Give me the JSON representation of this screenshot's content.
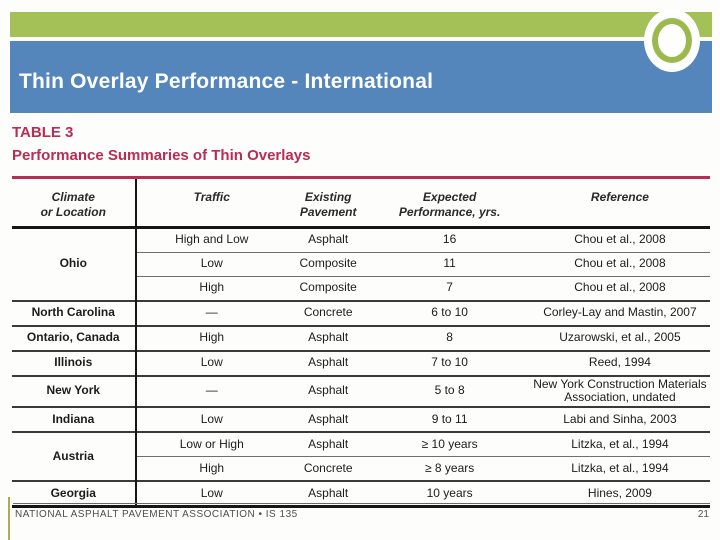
{
  "slide": {
    "title": "Thin Overlay Performance - International"
  },
  "table": {
    "label": "TABLE 3",
    "caption": "Performance Summaries of Thin Overlays",
    "columns": [
      {
        "l1": "Climate",
        "l2": "or Location"
      },
      {
        "l1": "Traffic",
        "l2": ""
      },
      {
        "l1": "Existing",
        "l2": "Pavement"
      },
      {
        "l1": "Expected",
        "l2": "Performance, yrs."
      },
      {
        "l1": "Reference",
        "l2": ""
      }
    ],
    "rows": [
      {
        "location": "Ohio",
        "location_rowspan": 3,
        "group_start": true,
        "traffic": "High and Low",
        "pavement": "Asphalt",
        "performance": "16",
        "reference": "Chou et al., 2008"
      },
      {
        "group_start": false,
        "traffic": "Low",
        "pavement": "Composite",
        "performance": "11",
        "reference": "Chou et al., 2008"
      },
      {
        "group_start": false,
        "traffic": "High",
        "pavement": "Composite",
        "performance": "7",
        "reference": "Chou et al., 2008"
      },
      {
        "location": "North Carolina",
        "location_rowspan": 1,
        "group_start": true,
        "traffic": "—",
        "pavement": "Concrete",
        "performance": "6 to 10",
        "reference": "Corley-Lay and Mastin, 2007"
      },
      {
        "location": "Ontario, Canada",
        "location_rowspan": 1,
        "group_start": true,
        "traffic": "High",
        "pavement": "Asphalt",
        "performance": "8",
        "reference": "Uzarowski, et al., 2005"
      },
      {
        "location": "Illinois",
        "location_rowspan": 1,
        "group_start": true,
        "traffic": "Low",
        "pavement": "Asphalt",
        "performance": "7 to 10",
        "reference": "Reed, 1994"
      },
      {
        "location": "New York",
        "location_rowspan": 1,
        "group_start": true,
        "traffic": "—",
        "pavement": "Asphalt",
        "performance": "5 to 8",
        "reference": "New York Construction Materials Association, undated"
      },
      {
        "location": "Indiana",
        "location_rowspan": 1,
        "group_start": true,
        "traffic": "Low",
        "pavement": "Asphalt",
        "performance": "9 to 11",
        "reference": "Labi and Sinha, 2003"
      },
      {
        "location": "Austria",
        "location_rowspan": 2,
        "group_start": true,
        "traffic": "Low or High",
        "pavement": "Asphalt",
        "performance": "≥ 10 years",
        "reference": "Litzka, et al., 1994"
      },
      {
        "group_start": false,
        "traffic": "High",
        "pavement": "Concrete",
        "performance": "≥ 8 years",
        "reference": "Litzka, et al., 1994"
      },
      {
        "location": "Georgia",
        "location_rowspan": 1,
        "group_start": true,
        "traffic": "Low",
        "pavement": "Asphalt",
        "performance": "10 years",
        "reference": "Hines, 2009"
      }
    ]
  },
  "footer": {
    "left": "NATIONAL ASPHALT PAVEMENT ASSOCIATION • IS 135",
    "page": "21"
  },
  "colors": {
    "accent_green": "#a3c156",
    "accent_blue": "#5586bb",
    "table_crimson": "#b82d54",
    "footer_olive": "#b3a952"
  }
}
